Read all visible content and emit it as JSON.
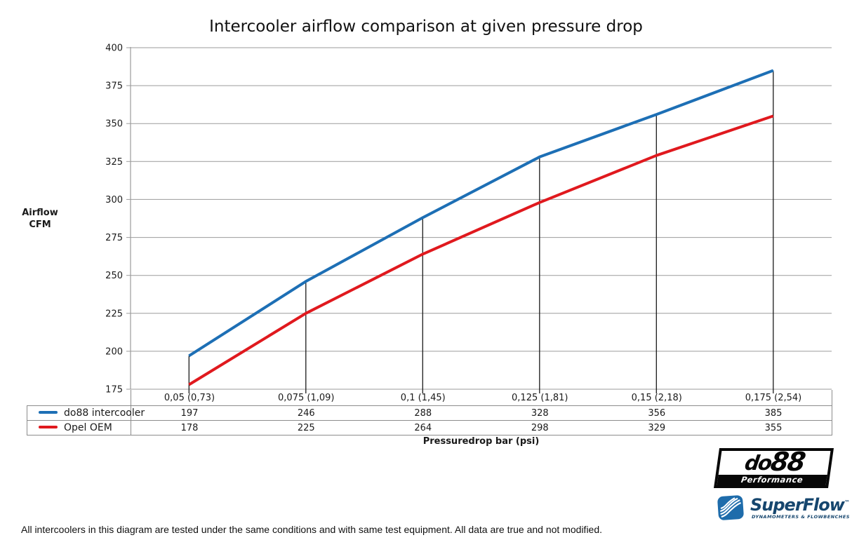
{
  "title": "Intercooler airflow comparison at given pressure drop",
  "chart_data": {
    "type": "line",
    "title": "Intercooler airflow comparison at given pressure drop",
    "categories": [
      "0,05 (0,73)",
      "0,075 (1,09)",
      "0,1 (1,45)",
      "0,125 (1,81)",
      "0,15 (2,18)",
      "0,175 (2,54)"
    ],
    "series": [
      {
        "name": "do88 intercooler",
        "color": "#1d6fb5",
        "values": [
          197,
          246,
          288,
          328,
          356,
          385
        ]
      },
      {
        "name": "Opel OEM",
        "color": "#e0191e",
        "values": [
          178,
          225,
          264,
          298,
          329,
          355
        ]
      }
    ],
    "xlabel": "Pressuredrop bar (psi)",
    "ylabel_lines": [
      "Airflow",
      "CFM"
    ],
    "ylim": [
      175,
      400
    ],
    "ytick_step": 25,
    "grid": "horizontal",
    "gridline_color": "#9b9b9b",
    "drop_line_color": "#1a1a1a",
    "drop_lines": "vertical line at each category from x-axis up to do88 series value",
    "legend_position": "table-left"
  },
  "footer_note": "All intercoolers in this diagram are tested under the same conditions and with same test equipment. All data are true and not modified.",
  "logos": {
    "do88": {
      "text_do": "do",
      "text_88": "88",
      "subtext": "Performance"
    },
    "superflow": {
      "text": "SuperFlow",
      "tm": "™",
      "subtext": "DYNAMOMETERS & FLOWBENCHES"
    }
  }
}
